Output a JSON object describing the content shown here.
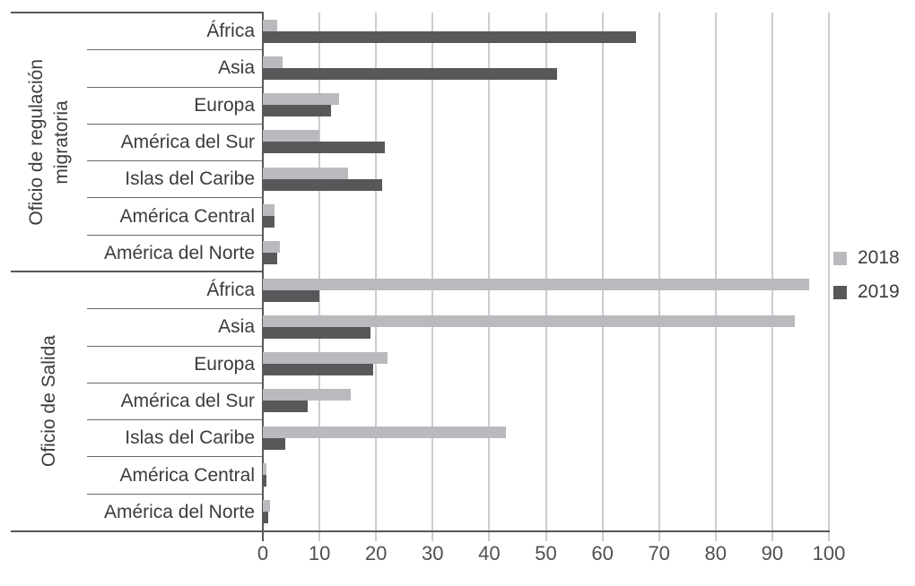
{
  "chart_data": {
    "type": "bar",
    "orientation": "horizontal",
    "title": "",
    "xlabel": "",
    "ylabel": "",
    "xlim": [
      0,
      100
    ],
    "x_ticks": [
      0,
      10,
      20,
      30,
      40,
      50,
      60,
      70,
      80,
      90,
      100
    ],
    "grid": true,
    "legend_position": "right",
    "legend": [
      {
        "label": "2018",
        "color": "#b9babd"
      },
      {
        "label": "2019",
        "color": "#58585a"
      }
    ],
    "groups": [
      {
        "label": "Oficio de regulación migratoria",
        "label_lines": "Oficio de regulación\nmigratoria",
        "categories": [
          "África",
          "Asia",
          "Europa",
          "América del Sur",
          "Islas del Caribe",
          "América Central",
          "América del Norte"
        ],
        "series": [
          {
            "name": "2018",
            "values": [
              2.5,
              3.5,
              13.5,
              10,
              15,
              2,
              3
            ]
          },
          {
            "name": "2019",
            "values": [
              66,
              52,
              12,
              21.5,
              21,
              2,
              2.5
            ]
          }
        ]
      },
      {
        "label": "Oficio de Salida",
        "label_lines": "Oficio de Salida",
        "categories": [
          "África",
          "Asia",
          "Europa",
          "América del Sur",
          "Islas del Caribe",
          "América Central",
          "América del Norte"
        ],
        "series": [
          {
            "name": "2018",
            "values": [
              96.5,
              94,
              22,
              15.5,
              43,
              0.7,
              1.2
            ]
          },
          {
            "name": "2019",
            "values": [
              10,
              19,
              19.5,
              8,
              4,
              0.7,
              1
            ]
          }
        ]
      }
    ],
    "colors": {
      "axis": "#58585a",
      "gridline": "#cdcdd0",
      "category_separator": "#69696b",
      "text": "#3c3c3e"
    }
  }
}
